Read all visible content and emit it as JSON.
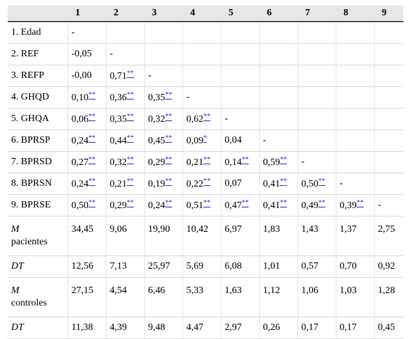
{
  "header": [
    "",
    "1",
    "2",
    "3",
    "4",
    "5",
    "6",
    "7",
    "8",
    "9"
  ],
  "rows": [
    {
      "label": "1. Edad",
      "cells": [
        {
          "v": "-"
        },
        {},
        {},
        {},
        {},
        {},
        {},
        {},
        {}
      ]
    },
    {
      "label": "2. REF",
      "cells": [
        {
          "v": "-0,05"
        },
        {
          "v": "-"
        },
        {},
        {},
        {},
        {},
        {},
        {},
        {}
      ]
    },
    {
      "label": "3. REFP",
      "cells": [
        {
          "v": "-0,00"
        },
        {
          "v": "0,71",
          "s": "**"
        },
        {
          "v": "-"
        },
        {},
        {},
        {},
        {},
        {},
        {}
      ]
    },
    {
      "label": "4. GHQD",
      "cells": [
        {
          "v": "0,10",
          "s": "**"
        },
        {
          "v": "0,36",
          "s": "**"
        },
        {
          "v": "0,35",
          "s": "**"
        },
        {
          "v": "-"
        },
        {},
        {},
        {},
        {},
        {}
      ]
    },
    {
      "label": "5. GHQA",
      "cells": [
        {
          "v": "0,06",
          "s": "**"
        },
        {
          "v": "0,35",
          "s": "**"
        },
        {
          "v": "0,32",
          "s": "**"
        },
        {
          "v": "0,62",
          "s": "**"
        },
        {
          "v": "-"
        },
        {},
        {},
        {},
        {}
      ]
    },
    {
      "label": "6. BPRSP",
      "cells": [
        {
          "v": "0,24",
          "s": "**"
        },
        {
          "v": "0,44",
          "s": "**"
        },
        {
          "v": "0,45",
          "s": "**"
        },
        {
          "v": "0,09",
          "s": "*"
        },
        {
          "v": "0,04"
        },
        {
          "v": "-"
        },
        {},
        {},
        {}
      ]
    },
    {
      "label": "7. BPRSD",
      "cells": [
        {
          "v": "0,27",
          "s": "**"
        },
        {
          "v": "0,32",
          "s": "**"
        },
        {
          "v": "0,29",
          "s": "**"
        },
        {
          "v": "0,21",
          "s": "**"
        },
        {
          "v": "0,14",
          "s": "**"
        },
        {
          "v": "0,59",
          "s": "**"
        },
        {
          "v": "-"
        },
        {},
        {}
      ]
    },
    {
      "label": "8. BPRSN",
      "cells": [
        {
          "v": "0,24",
          "s": "**"
        },
        {
          "v": "0,21",
          "s": "**"
        },
        {
          "v": "0,19",
          "s": "**"
        },
        {
          "v": "0,22",
          "s": "**"
        },
        {
          "v": "0,07"
        },
        {
          "v": "0,41",
          "s": "**"
        },
        {
          "v": "0,50",
          "s": "**"
        },
        {
          "v": "-"
        },
        {}
      ]
    },
    {
      "label": "9. BPRSE",
      "cells": [
        {
          "v": "0,50",
          "s": "**"
        },
        {
          "v": "0,29",
          "s": "**"
        },
        {
          "v": "0,24",
          "s": "**"
        },
        {
          "v": "0,51",
          "s": "**"
        },
        {
          "v": "0,47",
          "s": "**"
        },
        {
          "v": "0,41",
          "s": "**"
        },
        {
          "v": "0,49",
          "s": "**"
        },
        {
          "v": "0,39",
          "s": "**"
        },
        {
          "v": "-"
        }
      ]
    }
  ],
  "stats": [
    {
      "sym": "M",
      "sub": "pacientes",
      "tall": true,
      "values": [
        "34,45",
        "9,06",
        "19,90",
        "10,42",
        "6,97",
        "1,83",
        "1,43",
        "1,37",
        "2,75"
      ]
    },
    {
      "sym": "DT",
      "sub": "",
      "tall": false,
      "values": [
        "12,56",
        "7,13",
        "25,97",
        "5,69",
        "6,08",
        "1,01",
        "0,57",
        "0,70",
        "0,92"
      ]
    },
    {
      "sym": "M",
      "sub": "controles",
      "tall": true,
      "values": [
        "27,15",
        "4,54",
        "6,46",
        "5,33",
        "1,63",
        "1,12",
        "1,06",
        "1,03",
        "1,28"
      ]
    },
    {
      "sym": "DT",
      "sub": "",
      "tall": false,
      "values": [
        "11,38",
        "4,39",
        "9,48",
        "4,47",
        "2,97",
        "0,26",
        "0,17",
        "0,17",
        "0,45"
      ]
    }
  ],
  "colors": {
    "header_bg": "#e6e6e6",
    "footnote_link": "#2233dd"
  }
}
